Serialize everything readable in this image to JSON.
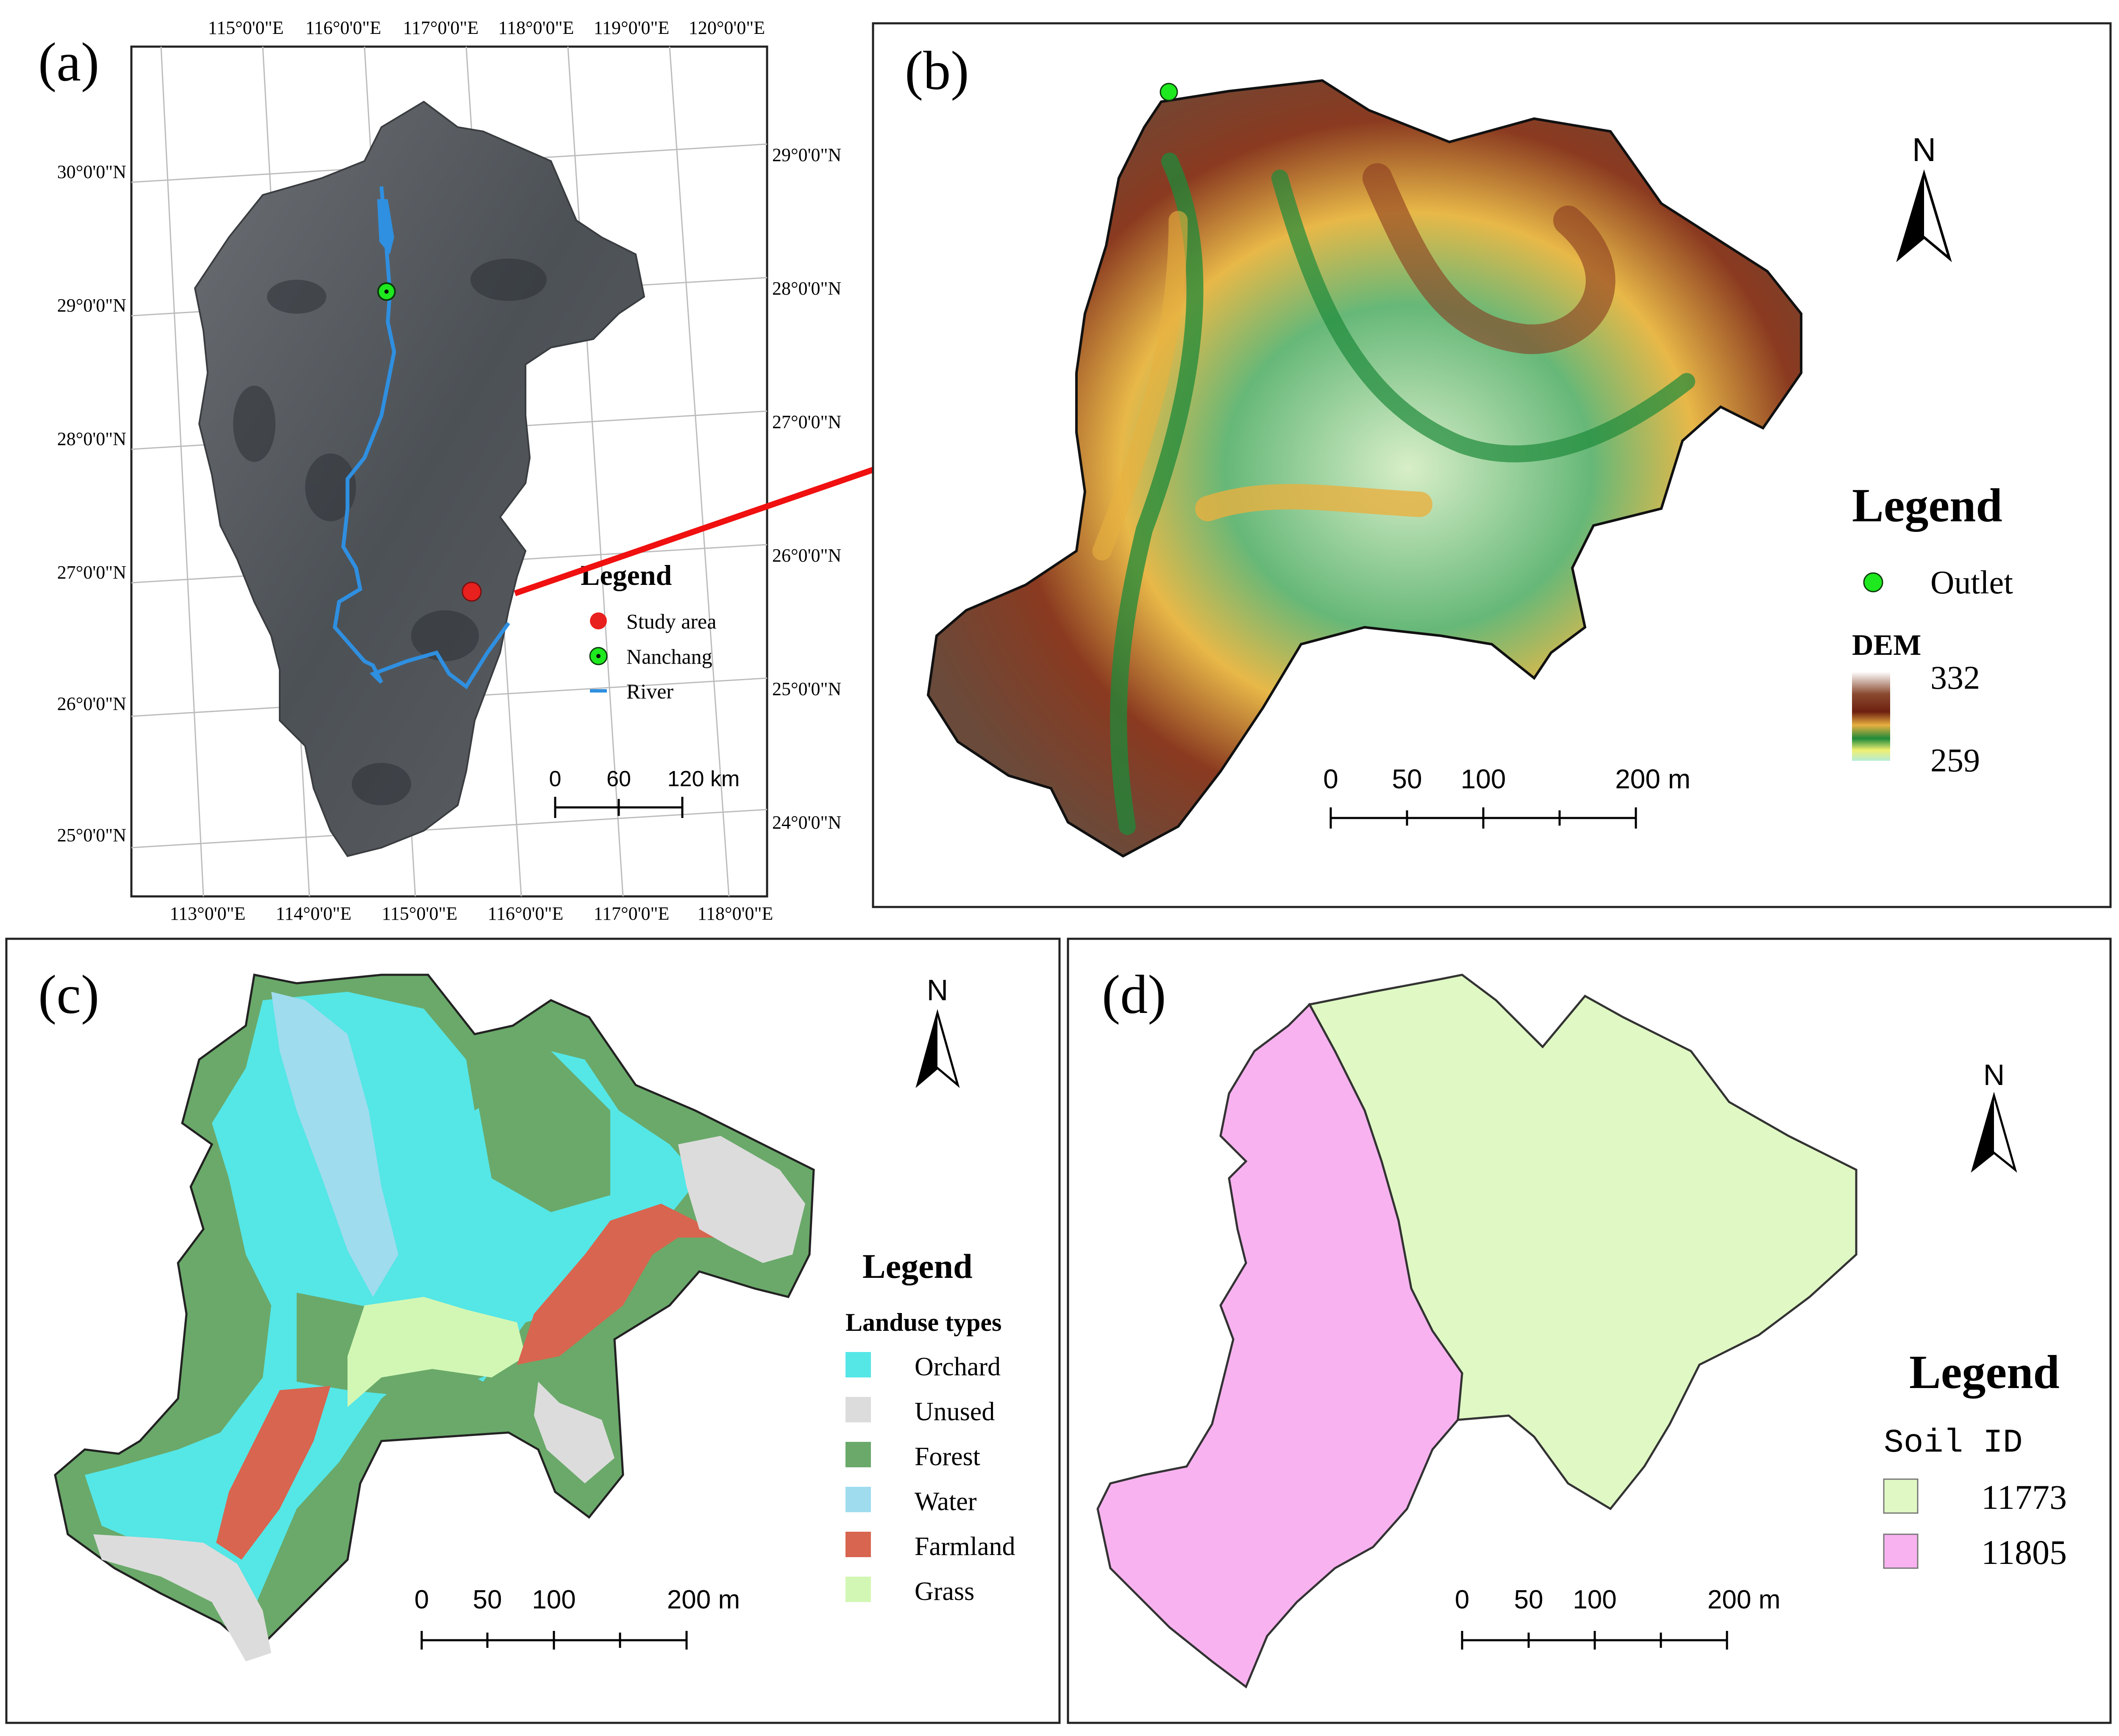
{
  "colors": {
    "river": "#2f8fe0",
    "study_area": "#e8201e",
    "outlet": "#1ee81e",
    "arrow": "#f01010",
    "orchard": "#55e6e6",
    "unused": "#dcdcdc",
    "forest": "#6aa96a",
    "water": "#9fdcee",
    "farmland": "#d8654f",
    "grass": "#d2f7b4",
    "soil_11773": "#e0f9c4",
    "soil_11805": "#f8b2f0",
    "dem_high": "#ffffff",
    "dem_mid": "#6e2a14",
    "dem_low": "#b4ecd6"
  },
  "panel_a": {
    "label": "(a)",
    "top_ticks": [
      "115°0'0\"E",
      "116°0'0\"E",
      "117°0'0\"E",
      "118°0'0\"E",
      "119°0'0\"E",
      "120°0'0\"E"
    ],
    "bottom_ticks": [
      "113°0'0\"E",
      "114°0'0\"E",
      "115°0'0\"E",
      "116°0'0\"E",
      "117°0'0\"E",
      "118°0'0\"E"
    ],
    "left_ticks": [
      "30°0'0\"N",
      "29°0'0\"N",
      "28°0'0\"N",
      "27°0'0\"N",
      "26°0'0\"N",
      "25°0'0\"N"
    ],
    "right_ticks": [
      "29°0'0\"N",
      "28°0'0\"N",
      "27°0'0\"N",
      "26°0'0\"N",
      "25°0'0\"N",
      "24°0'0\"N"
    ],
    "legend": {
      "title": "Legend",
      "study_area": "Study area",
      "nanchang": "Nanchang",
      "river": "River"
    },
    "scale": {
      "zero": "0",
      "mid": "60",
      "end": "120 km"
    }
  },
  "panel_b": {
    "label": "(b)",
    "north": "N",
    "legend": {
      "title": "Legend",
      "outlet": "Outlet",
      "dem_title": "DEM",
      "dem_max": "332",
      "dem_min": "259"
    },
    "scale": {
      "zero": "0",
      "t50": "50",
      "t100": "100",
      "end": "200 m"
    }
  },
  "panel_c": {
    "label": "(c)",
    "north": "N",
    "legend": {
      "title": "Legend",
      "subtitle": "Landuse types",
      "orchard": "Orchard",
      "unused": "Unused",
      "forest": "Forest",
      "water": "Water",
      "farmland": "Farmland",
      "grass": "Grass"
    },
    "scale": {
      "zero": "0",
      "t50": "50",
      "t100": "100",
      "end": "200 m"
    }
  },
  "panel_d": {
    "label": "(d)",
    "north": "N",
    "legend": {
      "title": "Legend",
      "subtitle": "Soil ID",
      "soil_1": "11773",
      "soil_2": "11805"
    },
    "scale": {
      "zero": "0",
      "t50": "50",
      "t100": "100",
      "end": "200 m"
    }
  }
}
